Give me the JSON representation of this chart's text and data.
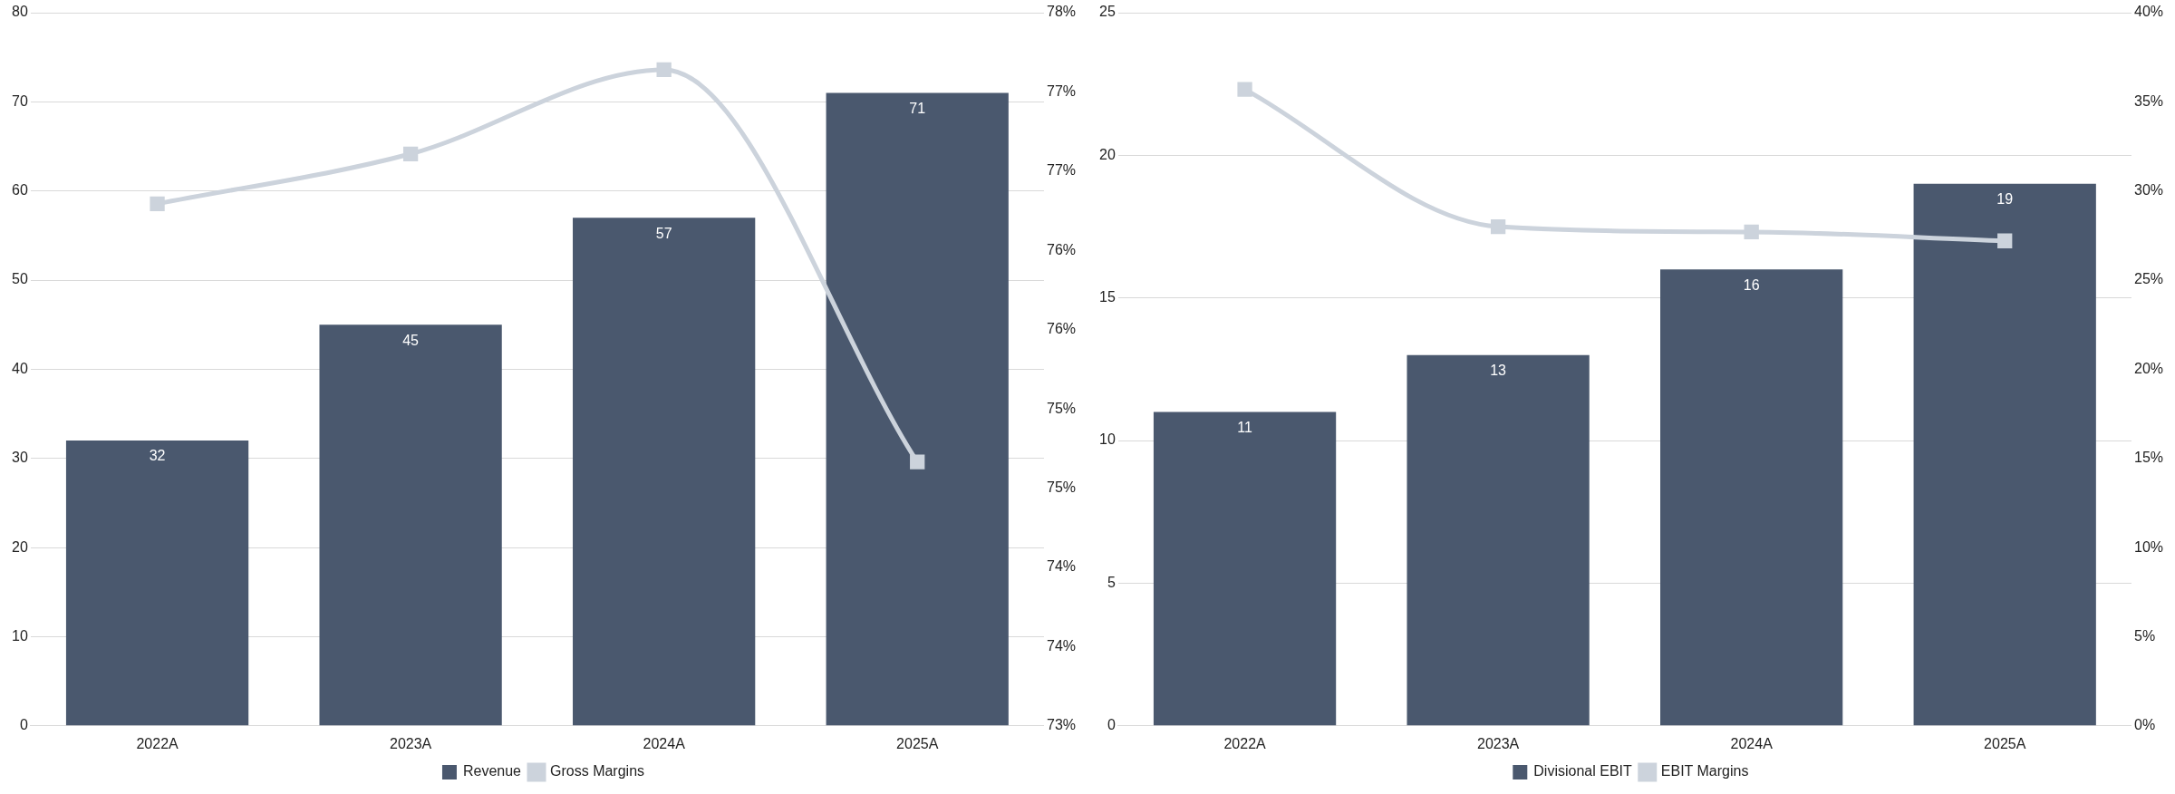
{
  "chart_data": [
    {
      "type": "bar",
      "categories": [
        "2022A",
        "2023A",
        "2024A",
        "2025A"
      ],
      "series": [
        {
          "name": "Revenue",
          "color": "#4a586e",
          "values": [
            32,
            45,
            57,
            71
          ],
          "value_labels": [
            "32",
            "45",
            "57",
            "71"
          ]
        },
        {
          "name": "Gross Margins",
          "type": "line",
          "axis": "y2",
          "color": "#ccd3dc",
          "values": [
            76.66,
            77.01,
            77.6,
            74.85
          ]
        }
      ],
      "ylim": [
        0,
        80
      ],
      "yticks": [
        0,
        10,
        20,
        30,
        40,
        50,
        60,
        70,
        80
      ],
      "y2lim": [
        73,
        78
      ],
      "y2ticks": [
        {
          "value": 73,
          "label": "73%"
        },
        {
          "value": 73.556,
          "label": "74%"
        },
        {
          "value": 74.111,
          "label": "74%"
        },
        {
          "value": 74.667,
          "label": "75%"
        },
        {
          "value": 75.222,
          "label": "75%"
        },
        {
          "value": 75.778,
          "label": "76%"
        },
        {
          "value": 76.333,
          "label": "76%"
        },
        {
          "value": 76.889,
          "label": "77%"
        },
        {
          "value": 77.444,
          "label": "77%"
        },
        {
          "value": 78,
          "label": "78%"
        }
      ],
      "grid": "y",
      "legend": "bottom",
      "marker": "square",
      "line_style": "solid"
    },
    {
      "type": "bar",
      "categories": [
        "2022A",
        "2023A",
        "2024A",
        "2025A"
      ],
      "series": [
        {
          "name": "Divisional EBIT",
          "color": "#4a586e",
          "values": [
            11,
            13,
            16,
            19
          ],
          "value_labels": [
            "11",
            "13",
            "16",
            "19"
          ]
        },
        {
          "name": "EBIT Margins",
          "type": "line",
          "axis": "y2",
          "color": "#ccd3dc",
          "values": [
            35.7,
            28,
            27.7,
            27.2
          ]
        }
      ],
      "ylim": [
        0,
        25
      ],
      "yticks": [
        0,
        5,
        10,
        15,
        20,
        25
      ],
      "y2lim": [
        0,
        40
      ],
      "y2ticks": [
        {
          "value": 0,
          "label": "0%"
        },
        {
          "value": 5,
          "label": "5%"
        },
        {
          "value": 10,
          "label": "10%"
        },
        {
          "value": 15,
          "label": "15%"
        },
        {
          "value": 20,
          "label": "20%"
        },
        {
          "value": 25,
          "label": "25%"
        },
        {
          "value": 30,
          "label": "30%"
        },
        {
          "value": 35,
          "label": "35%"
        },
        {
          "value": 40,
          "label": "40%"
        }
      ],
      "grid": "y",
      "legend": "bottom",
      "marker": "square",
      "line_style": "solid"
    }
  ]
}
